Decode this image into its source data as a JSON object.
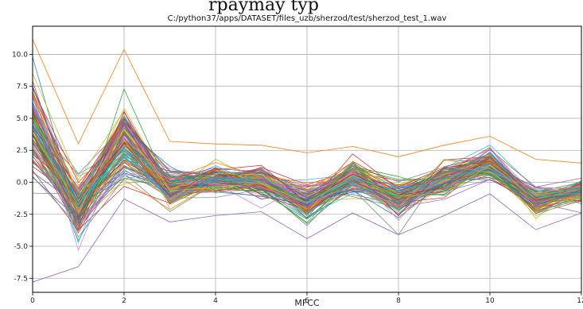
{
  "header_fragment": "rpaymay typ",
  "chart_data": {
    "type": "line",
    "title": "C:/python37/apps/DATASET/files_uzb/sherzod/test/sherzod_test_1.wav",
    "xlabel": "MFCC",
    "ylabel": "",
    "x": [
      0,
      1,
      2,
      3,
      4,
      5,
      6,
      7,
      8,
      9,
      10,
      11,
      12
    ],
    "xlim": [
      0,
      12
    ],
    "ylim": [
      -8.6,
      12.2
    ],
    "x_ticks": [
      "0",
      "2",
      "4",
      "6",
      "8",
      "10",
      "12"
    ],
    "y_ticks": [
      "10.0",
      "7.5",
      "5.0",
      "2.5",
      "0.0",
      "-2.5",
      "-5.0",
      "-7.5"
    ],
    "grid": true,
    "n_series": 130,
    "envelope": {
      "mean": [
        4.0,
        -2.0,
        3.0,
        -0.5,
        0.2,
        0.1,
        -1.6,
        0.4,
        -1.4,
        0.2,
        1.5,
        -1.4,
        -0.6
      ],
      "spread": [
        3.8,
        2.0,
        2.6,
        1.4,
        1.0,
        1.0,
        1.3,
        1.1,
        1.2,
        1.2,
        1.1,
        0.9,
        0.8
      ],
      "max": [
        11.2,
        3.0,
        10.4,
        3.2,
        3.0,
        2.9,
        2.3,
        2.8,
        2.0,
        2.9,
        3.6,
        1.8,
        1.5
      ],
      "min": [
        -7.8,
        -6.6,
        -1.3,
        -3.1,
        -2.6,
        -2.3,
        -4.4,
        -2.4,
        -4.1,
        -2.6,
        -0.9,
        -3.7,
        -2.4
      ]
    },
    "palette": [
      "#1f77b4",
      "#ff7f0e",
      "#2ca02c",
      "#d62728",
      "#9467bd",
      "#8c564b",
      "#e377c2",
      "#7f7f7f",
      "#bcbd22",
      "#17becf"
    ]
  }
}
